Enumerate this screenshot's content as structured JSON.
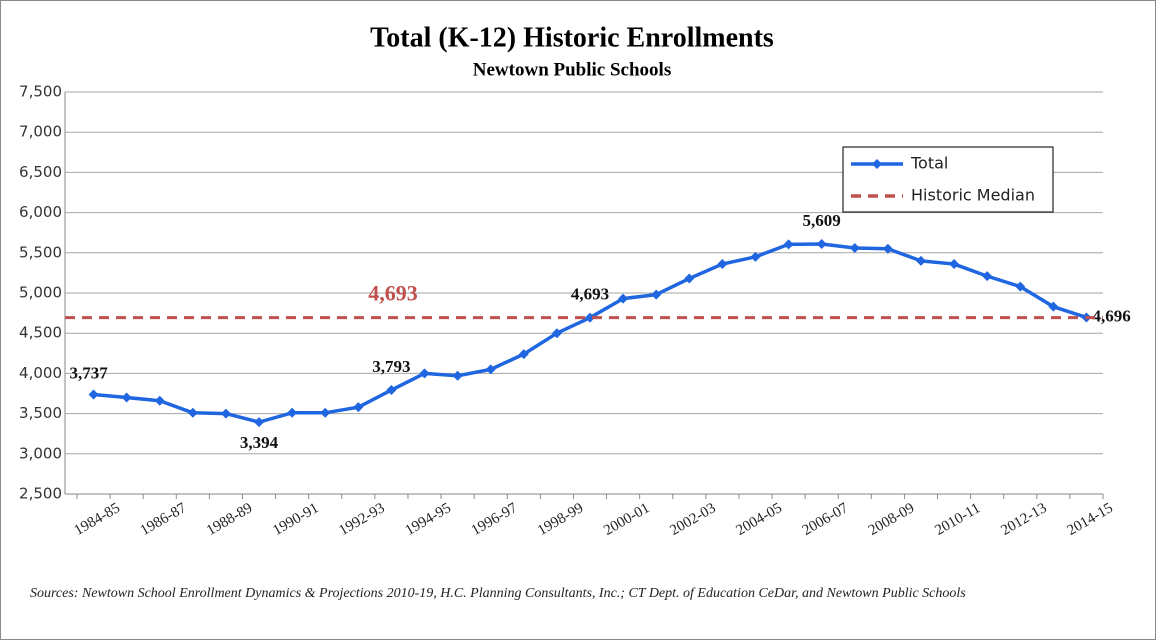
{
  "chart_data": {
    "type": "line",
    "title": "Total (K-12) Historic Enrollments",
    "subtitle": "Newtown Public Schools",
    "categories": [
      "1984-85",
      null,
      "1986-87",
      null,
      "1988-89",
      null,
      "1990-91",
      null,
      "1992-93",
      null,
      "1994-95",
      null,
      "1996-97",
      null,
      "1998-99",
      null,
      "2000-01",
      null,
      "2002-03",
      null,
      "2004-05",
      null,
      "2006-07",
      null,
      "2008-09",
      null,
      "2010-11",
      null,
      "2012-13",
      null,
      "2014-15"
    ],
    "series": [
      {
        "name": "Total",
        "color": "#1f66e0",
        "values": [
          3737,
          3700,
          3660,
          3510,
          3500,
          3394,
          3510,
          3510,
          3580,
          3793,
          4000,
          3970,
          4050,
          4240,
          4500,
          4693,
          4930,
          4980,
          5180,
          5360,
          5450,
          5605,
          5609,
          5560,
          5550,
          5400,
          5360,
          5210,
          5080,
          4830,
          4696
        ],
        "value_labels": [
          "3,737",
          null,
          null,
          null,
          null,
          "3,394",
          null,
          null,
          null,
          "3,793",
          null,
          null,
          null,
          null,
          null,
          "4,693",
          null,
          null,
          null,
          null,
          null,
          null,
          "5,609",
          null,
          null,
          null,
          null,
          null,
          null,
          null,
          "4,696"
        ]
      },
      {
        "name": "Historic Median",
        "color": "#c0504d",
        "dashed": true,
        "value": 4693,
        "value_label": "4,693"
      }
    ],
    "ylim": [
      2500,
      7500
    ],
    "yticks": [
      {
        "value": 2500,
        "label": "2,500"
      },
      {
        "value": 3000,
        "label": "3,000"
      },
      {
        "value": 3500,
        "label": "3,500"
      },
      {
        "value": 4000,
        "label": "4,000"
      },
      {
        "value": 4500,
        "label": "4,500"
      },
      {
        "value": 5000,
        "label": "5,000"
      },
      {
        "value": 5500,
        "label": "5,500"
      },
      {
        "value": 6000,
        "label": "6,000"
      },
      {
        "value": 6500,
        "label": "6,500"
      },
      {
        "value": 7000,
        "label": "7,000"
      },
      {
        "value": 7500,
        "label": "7,500"
      }
    ],
    "grid": true,
    "legend": "upper right",
    "source": "Sources: Newtown School Enrollment Dynamics & Projections 2010-19, H.C. Planning Consultants, Inc.; CT Dept. of Education CeDar, and Newtown Public Schools"
  }
}
